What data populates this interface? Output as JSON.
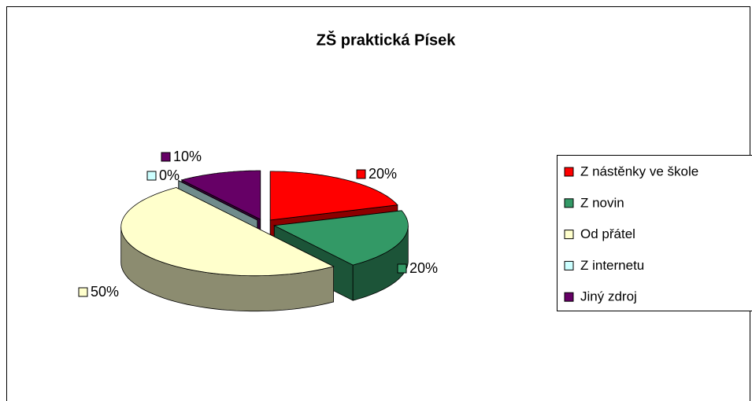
{
  "chart_data": {
    "type": "pie",
    "title": "ZŠ praktická Písek",
    "categories": [
      "Z nástěnky ve škole",
      "Z novin",
      "Od přátel",
      "Z internetu",
      "Jiný zdroj"
    ],
    "values": [
      20,
      20,
      50,
      0,
      10
    ],
    "value_labels": [
      "20%",
      "20%",
      "50%",
      "0%",
      "10%"
    ],
    "colors": [
      "#ff0000",
      "#339966",
      "#ffffcc",
      "#ccffff",
      "#660066"
    ],
    "legend": "right"
  }
}
